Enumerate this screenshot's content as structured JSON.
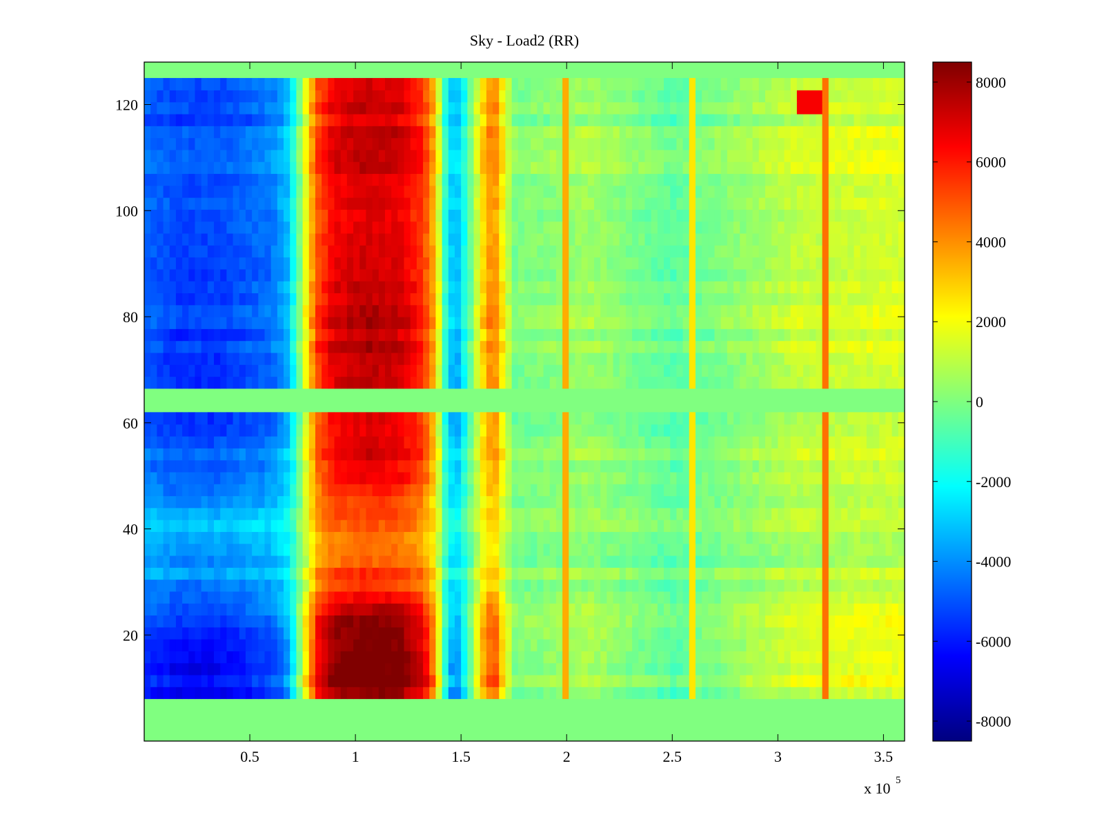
{
  "chart_data": {
    "type": "heatmap",
    "title": "Sky - Load2 (RR)",
    "xlabel": "",
    "ylabel": "",
    "x_multiplier_label": "x 10",
    "x_multiplier_exponent": "5",
    "xlim": [
      0,
      3.6
    ],
    "ylim": [
      0,
      128
    ],
    "x_ticks": [
      0.5,
      1,
      1.5,
      2,
      2.5,
      3,
      3.5
    ],
    "x_tick_labels": [
      "0.5",
      "1",
      "1.5",
      "2",
      "2.5",
      "3",
      "3.5"
    ],
    "y_ticks": [
      20,
      40,
      60,
      80,
      100,
      120
    ],
    "y_tick_labels": [
      "20",
      "40",
      "60",
      "80",
      "100",
      "120"
    ],
    "colormap": "jet",
    "clim": [
      -8500,
      8500
    ],
    "colorbar": {
      "ticks": [
        8000,
        6000,
        4000,
        2000,
        0,
        -2000,
        -4000,
        -6000,
        -8000
      ],
      "tick_labels": [
        "8000",
        "6000",
        "4000",
        "2000",
        "0",
        "-2000",
        "-4000",
        "-6000",
        "-8000"
      ]
    },
    "grid": false,
    "empty_rows": [
      [
        0,
        8
      ],
      [
        61.5,
        67.5
      ],
      [
        125,
        128
      ]
    ],
    "column_profile": {
      "x": [
        0,
        0.15,
        0.35,
        0.6,
        0.68,
        0.72,
        0.76,
        0.82,
        0.9,
        1.05,
        1.2,
        1.32,
        1.38,
        1.42,
        1.47,
        1.52,
        1.58,
        1.62,
        1.66,
        1.7,
        1.75,
        1.9,
        2.1,
        2.5,
        2.8,
        3.1,
        3.6
      ],
      "values": [
        -4500,
        -5000,
        -5000,
        -4200,
        -3000,
        -1000,
        1500,
        5000,
        6500,
        7000,
        6800,
        5500,
        3000,
        -1000,
        -3500,
        -1500,
        1500,
        3500,
        4000,
        2000,
        0,
        200,
        600,
        -500,
        300,
        1200,
        1500
      ]
    },
    "row_profile": {
      "y": [
        8,
        14,
        22,
        30,
        40,
        50,
        61.5,
        67.5,
        72,
        80,
        90,
        100,
        110,
        120,
        125
      ],
      "scale": [
        1.25,
        1.3,
        1.2,
        0.8,
        0.65,
        0.95,
        1.05,
        1.1,
        1.1,
        1.08,
        1.05,
        1.0,
        1.02,
        1.05,
        1.0
      ]
    },
    "features": [
      {
        "x": 2.0,
        "value": 3500,
        "kind": "vertical-line"
      },
      {
        "x": 2.61,
        "value": 2500,
        "kind": "vertical-line"
      },
      {
        "x": 3.22,
        "value": 4500,
        "kind": "vertical-line"
      },
      {
        "x_range": [
          3.08,
          3.22
        ],
        "y_range": [
          118,
          122
        ],
        "value": 6500,
        "kind": "patch"
      }
    ]
  }
}
